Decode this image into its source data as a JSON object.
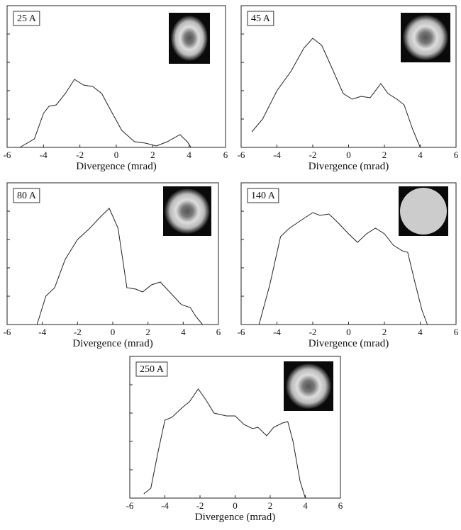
{
  "chart_data": [
    {
      "type": "line",
      "annotation": "25 A",
      "xlabel": "Divergence (mrad)",
      "xlim": [
        -6,
        6
      ],
      "xticks": [
        -6,
        -4,
        -2,
        0,
        2,
        4,
        6
      ],
      "ylim": [
        0,
        5
      ],
      "yticks": [
        1,
        2,
        3,
        4
      ],
      "color": "#222222",
      "x": [
        -5.3,
        -4.5,
        -4,
        -3.7,
        -3.3,
        -2.8,
        -2.3,
        -1.8,
        -1.3,
        -0.8,
        -0.3,
        0.3,
        1,
        1.6,
        2.2,
        2.8,
        3.5,
        3.9,
        4.1
      ],
      "values": [
        0,
        0.3,
        1.2,
        1.45,
        1.5,
        1.9,
        2.4,
        2.2,
        2.15,
        1.9,
        1.3,
        0.6,
        0.2,
        0.15,
        0.05,
        0.2,
        0.45,
        0.2,
        0
      ]
    },
    {
      "type": "line",
      "annotation": "45 A",
      "xlabel": "Divergence (mrad)",
      "xlim": [
        -6,
        6
      ],
      "xticks": [
        -6,
        -4,
        -2,
        0,
        2,
        4,
        6
      ],
      "ylim": [
        0,
        5
      ],
      "yticks": [
        1,
        2,
        3,
        4
      ],
      "color": "#222222",
      "x": [
        -5.4,
        -4.8,
        -4,
        -3.2,
        -2.5,
        -2,
        -1.5,
        -1,
        -0.3,
        0.2,
        0.7,
        1.2,
        1.8,
        2.2,
        2.7,
        3.1,
        3.6,
        4
      ],
      "values": [
        0.55,
        1,
        2,
        2.7,
        3.5,
        3.85,
        3.6,
        2.9,
        1.9,
        1.7,
        1.8,
        1.75,
        2.25,
        1.9,
        1.7,
        1.5,
        0.6,
        0
      ]
    },
    {
      "type": "line",
      "annotation": "80 A",
      "xlabel": "Divergence (mrad)",
      "xlim": [
        -6,
        6
      ],
      "xticks": [
        -6,
        -4,
        -2,
        0,
        2,
        4,
        6
      ],
      "ylim": [
        0,
        5
      ],
      "yticks": [
        1,
        2,
        3,
        4
      ],
      "color": "#222222",
      "x": [
        -4.3,
        -3.8,
        -3.3,
        -2.7,
        -2,
        -1.3,
        -0.7,
        -0.2,
        0.3,
        0.8,
        1.3,
        1.7,
        2.2,
        2.7,
        3.3,
        3.9,
        4.4,
        4.7,
        5.1
      ],
      "values": [
        0,
        1,
        1.3,
        2.3,
        3,
        3.4,
        3.8,
        4.1,
        3.4,
        1.3,
        1.25,
        1.15,
        1.4,
        1.5,
        1.1,
        0.7,
        0.6,
        0.3,
        0
      ]
    },
    {
      "type": "line",
      "annotation": "140 A",
      "xlabel": "Divergence (mrad)",
      "xlim": [
        -6,
        6
      ],
      "xticks": [
        -6,
        -4,
        -2,
        0,
        2,
        4,
        6
      ],
      "ylim": [
        0,
        5
      ],
      "yticks": [
        1,
        2,
        3,
        4
      ],
      "color": "#222222",
      "x": [
        -5,
        -4.4,
        -3.8,
        -3.3,
        -2.6,
        -2,
        -1.6,
        -1.1,
        -0.6,
        0,
        0.5,
        1,
        1.5,
        2,
        2.5,
        3,
        3.3,
        3.7,
        4.1,
        4.4
      ],
      "values": [
        0,
        1.4,
        3.1,
        3.4,
        3.7,
        3.95,
        3.85,
        3.9,
        3.6,
        3.2,
        2.9,
        3.2,
        3.4,
        3.2,
        2.8,
        2.6,
        2.55,
        1.5,
        0.5,
        0
      ]
    },
    {
      "type": "line",
      "annotation": "250 A",
      "xlabel": "Divergence (mrad)",
      "xlim": [
        -6,
        6
      ],
      "xticks": [
        -6,
        -4,
        -2,
        0,
        2,
        4,
        6
      ],
      "ylim": [
        0,
        5
      ],
      "yticks": [
        1,
        2,
        3,
        4
      ],
      "color": "#222222",
      "x": [
        -5.2,
        -4.8,
        -4.4,
        -4,
        -3.6,
        -3,
        -2.6,
        -2.1,
        -1.7,
        -1.2,
        -0.5,
        0,
        0.5,
        1,
        1.3,
        1.8,
        2.2,
        2.7,
        3,
        3.3,
        3.7,
        4
      ],
      "values": [
        0.15,
        0.35,
        1.6,
        2.75,
        2.85,
        3.2,
        3.4,
        3.85,
        3.5,
        3,
        2.9,
        2.9,
        2.6,
        2.45,
        2.5,
        2.2,
        2.5,
        2.65,
        2.7,
        2,
        0.6,
        0
      ]
    }
  ]
}
